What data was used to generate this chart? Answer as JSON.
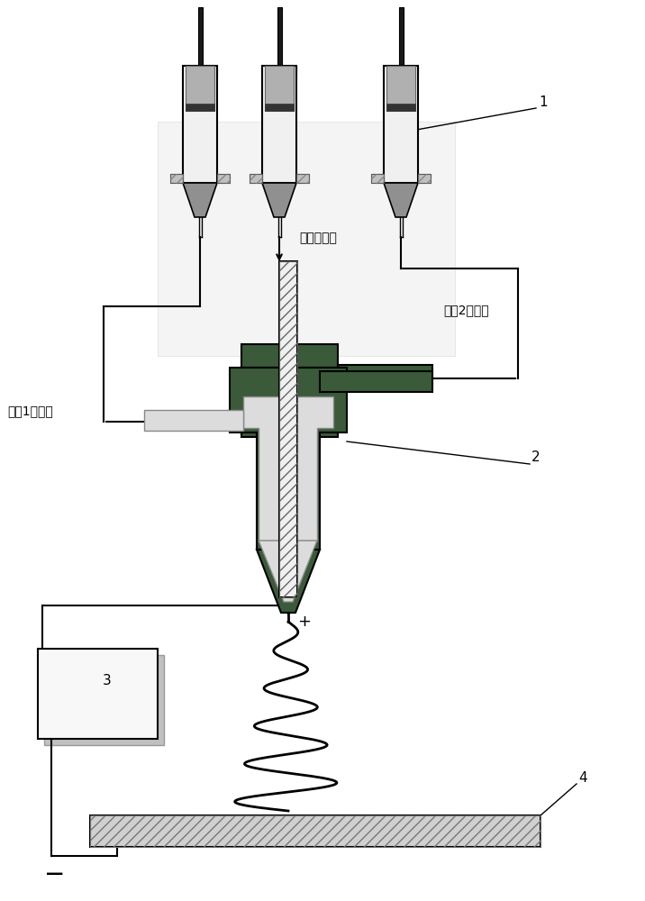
{
  "bg_color": "#ffffff",
  "line_color": "#000000",
  "dark_green": "#3a5a3a",
  "dark_gray": "#404040",
  "mid_gray": "#707070",
  "light_gray": "#c8c8c8",
  "lighter_gray": "#dcdcdc",
  "syringe_barrel_bg": "#f0f0f0",
  "syringe_plunger": "#b0b0b0",
  "syringe_body_dark": "#303030",
  "label_1": "1",
  "label_2": "2",
  "label_3": "3",
  "label_4": "4",
  "label_core": "核层进料口",
  "label_shell1": "壳其1进料口",
  "label_shell2": "壳其2进料口",
  "plus_sign": "+",
  "minus_sign": "—",
  "fontsize_label": 10,
  "fontsize_number": 11,
  "fontsize_sign": 13
}
